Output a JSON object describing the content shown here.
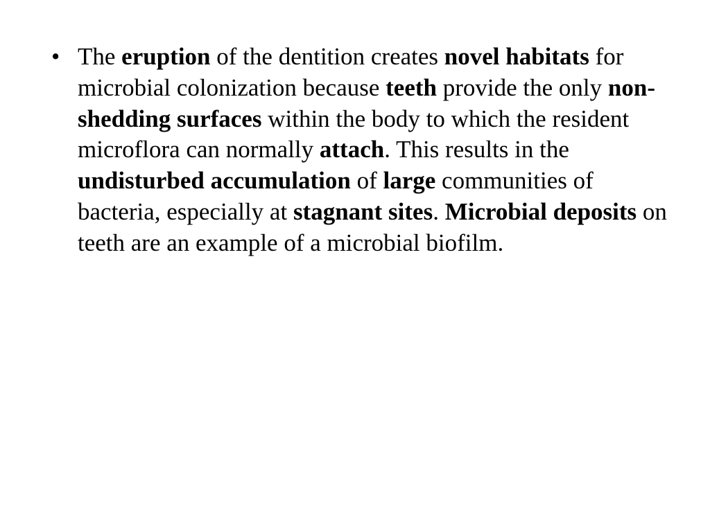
{
  "slide": {
    "background_color": "#ffffff",
    "text_color": "#000000",
    "font_family": "Times New Roman",
    "font_size_pt": 26,
    "line_height": 1.28,
    "bullet_char": "•",
    "bullets": [
      {
        "runs": [
          {
            "text": "The ",
            "bold": false
          },
          {
            "text": "eruption",
            "bold": true
          },
          {
            "text": " of the dentition creates ",
            "bold": false
          },
          {
            "text": "novel habitats",
            "bold": true
          },
          {
            "text": " for microbial colonization because ",
            "bold": false
          },
          {
            "text": "teeth",
            "bold": true
          },
          {
            "text": " provide the only ",
            "bold": false
          },
          {
            "text": "non-shedding surfaces",
            "bold": true
          },
          {
            "text": " within the body to which the resident microflora can normally ",
            "bold": false
          },
          {
            "text": "attach",
            "bold": true
          },
          {
            "text": ". This results in the ",
            "bold": false
          },
          {
            "text": "undisturbed accumulation",
            "bold": true
          },
          {
            "text": " of ",
            "bold": false
          },
          {
            "text": "large",
            "bold": true
          },
          {
            "text": " communities of bacteria, especially at ",
            "bold": false
          },
          {
            "text": "stagnant sites",
            "bold": true
          },
          {
            "text": ". ",
            "bold": false
          },
          {
            "text": "Microbial deposits",
            "bold": true
          },
          {
            "text": " on teeth are an example of a microbial biofilm.",
            "bold": false
          }
        ]
      }
    ]
  }
}
